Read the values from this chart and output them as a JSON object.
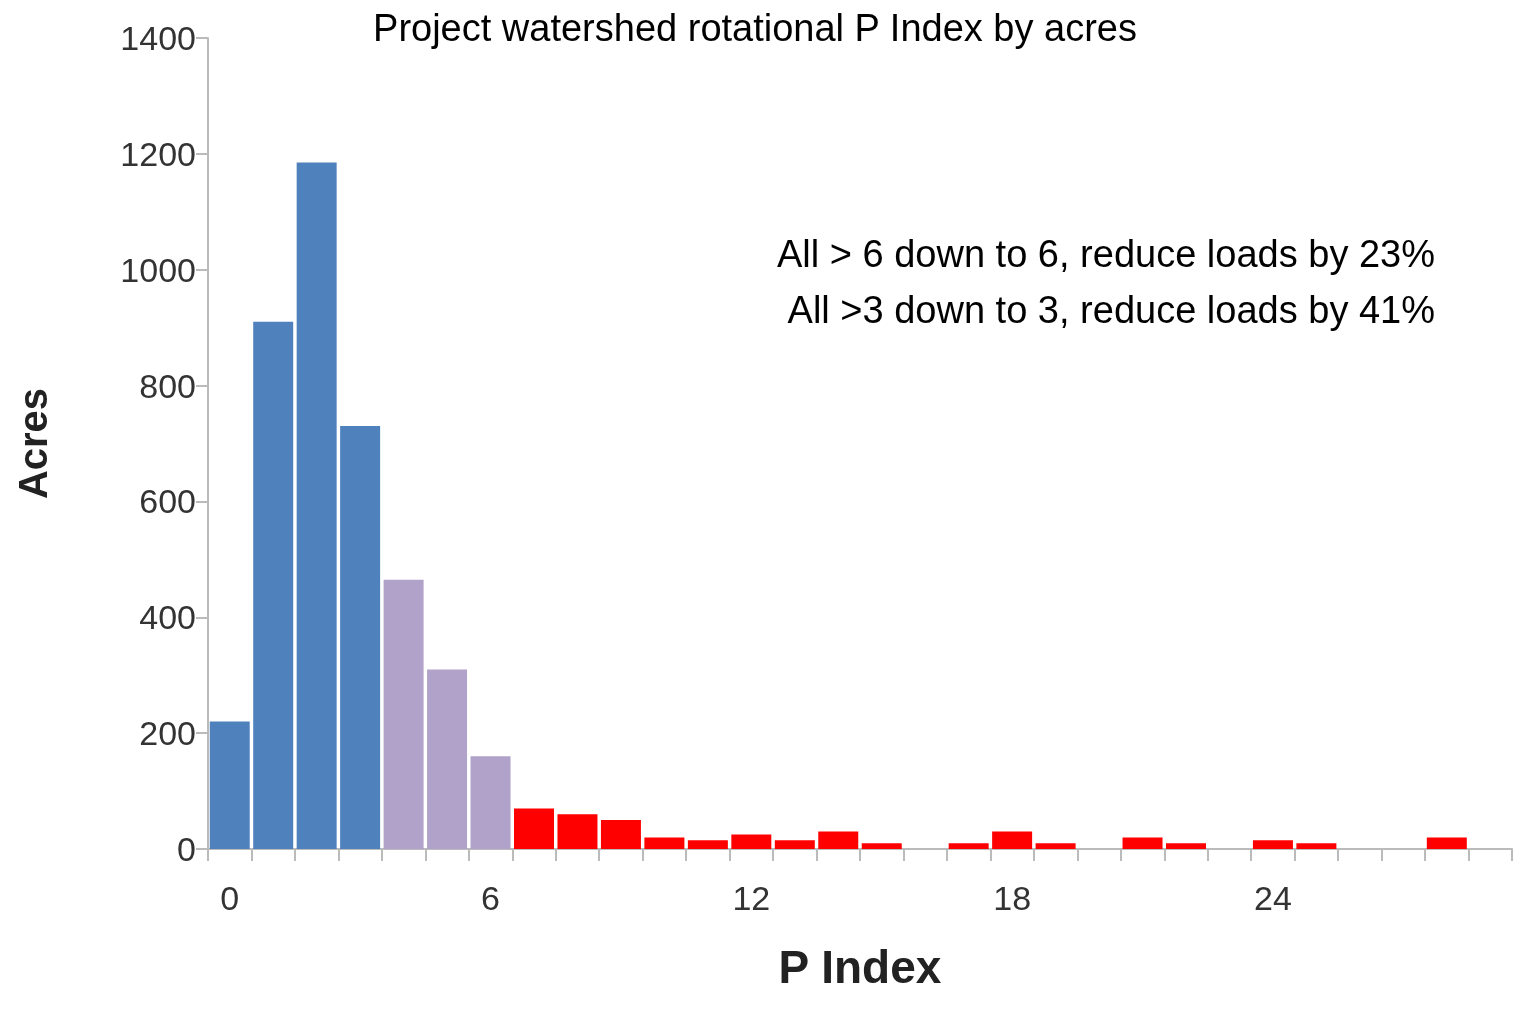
{
  "chart_data": {
    "type": "bar",
    "title": "Project watershed rotational P Index by acres",
    "xlabel": "P Index",
    "ylabel": "Acres",
    "categories": [
      "0",
      null,
      null,
      null,
      null,
      null,
      "6",
      null,
      null,
      null,
      null,
      null,
      "12",
      null,
      null,
      null,
      null,
      null,
      "18",
      null,
      null,
      null,
      null,
      null,
      "24",
      null,
      null,
      null,
      null,
      null
    ],
    "values": [
      220,
      910,
      1185,
      730,
      465,
      310,
      160,
      70,
      60,
      50,
      20,
      15,
      25,
      15,
      30,
      10,
      0,
      10,
      30,
      10,
      0,
      20,
      10,
      0,
      15,
      10,
      0,
      0,
      20,
      0
    ],
    "colors": [
      "#4f81bd",
      "#4f81bd",
      "#4f81bd",
      "#4f81bd",
      "#b0a2c8",
      "#b0a2c8",
      "#b0a2c8",
      "#ff0000",
      "#ff0000",
      "#ff0000",
      "#ff0000",
      "#ff0000",
      "#ff0000",
      "#ff0000",
      "#ff0000",
      "#ff0000",
      "#ff0000",
      "#ff0000",
      "#ff0000",
      "#ff0000",
      "#ff0000",
      "#ff0000",
      "#ff0000",
      "#ff0000",
      "#ff0000",
      "#ff0000",
      "#ff0000",
      "#ff0000",
      "#ff0000",
      "#ff0000"
    ],
    "ylim": [
      0,
      1400
    ],
    "yticks": [
      0,
      200,
      400,
      600,
      800,
      1000,
      1200,
      1400
    ],
    "grid": false,
    "annotations": [
      "All > 6 down to 6, reduce loads by 23%",
      "All >3 down to 3, reduce loads by 41%"
    ]
  }
}
